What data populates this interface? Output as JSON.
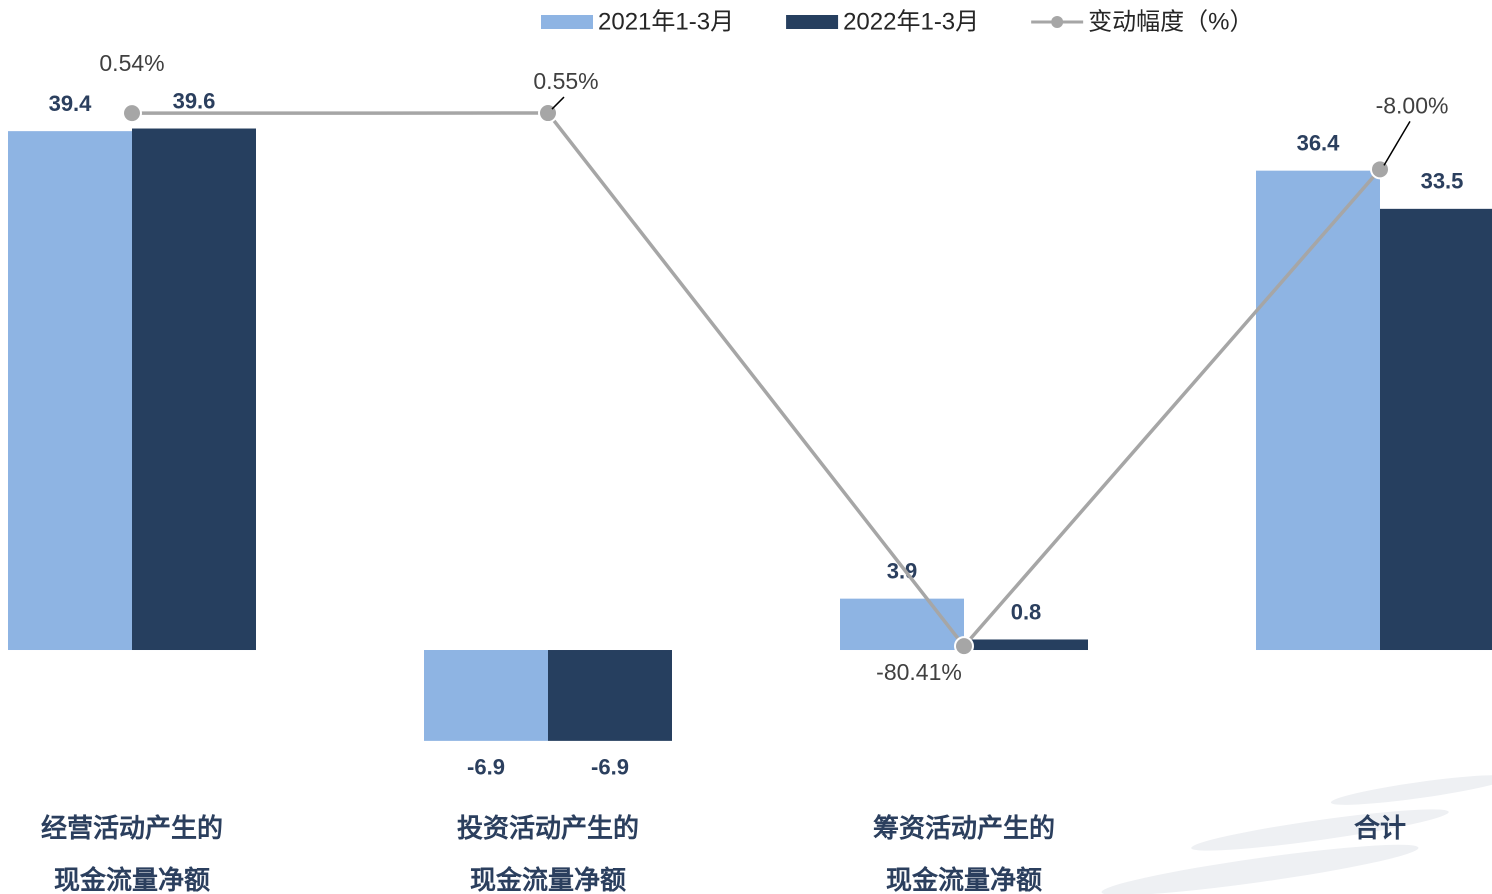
{
  "chart_data": {
    "type": "bar_line",
    "categories": [
      [
        "经营活动产生的",
        "现金流量净额"
      ],
      [
        "投资活动产生的",
        "现金流量净额"
      ],
      [
        "筹资活动产生的",
        "现金流量净额"
      ],
      [
        "合计"
      ]
    ],
    "series": [
      {
        "name": "2021年1-3月",
        "type": "bar",
        "color": "#8eb4e3",
        "values": [
          39.4,
          -6.9,
          3.9,
          36.4
        ]
      },
      {
        "name": "2022年1-3月",
        "type": "bar",
        "color": "#263f5f",
        "values": [
          39.6,
          -6.9,
          0.8,
          33.5
        ]
      },
      {
        "name": "变动幅度（%）",
        "type": "line",
        "axis": "y2",
        "color": "#a6a6a6",
        "values": [
          0.54,
          0.55,
          -80.41,
          -8.0
        ],
        "value_labels": [
          "0.54%",
          "0.55%",
          "-80.41%",
          "-8.00%"
        ]
      }
    ],
    "ylim": [
      -10,
      45
    ],
    "y2lim": [
      -101,
      9
    ],
    "legend": "top"
  }
}
